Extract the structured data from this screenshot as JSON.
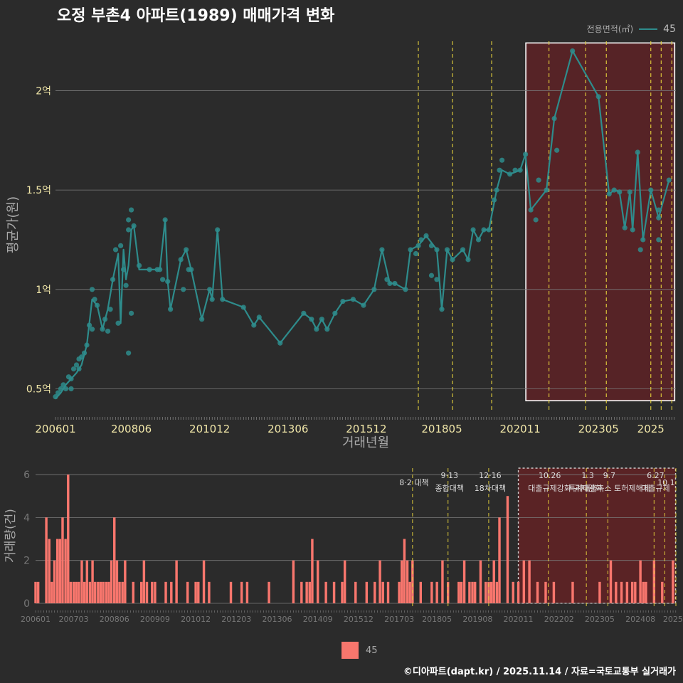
{
  "title": "오정 부촌4 아파트(1989) 매매가격 변화",
  "legend": {
    "label": "전용면적(㎡)",
    "series": "45",
    "bottom_series": "45"
  },
  "footer": "©디아파트(dapt.kr) / 2025.11.14 / 자료=국토교통부 실거래가",
  "colors": {
    "line": "#2e8c8c",
    "bar": "#f8766d",
    "policy": "#e6d23c",
    "highlight": "#7a1e22",
    "background": "#2b2b2b"
  },
  "chart_data": [
    {
      "type": "line",
      "title": "오정 부촌4 아파트(1989) 매매가격 변화",
      "xlabel": "거래년월",
      "ylabel": "평균가(원)",
      "x_tick_labels": [
        "200601",
        "200806",
        "201012",
        "201306",
        "201512",
        "201805",
        "202011",
        "202305",
        "2025"
      ],
      "x_tick_values": [
        2006.0,
        2008.42,
        2010.92,
        2013.42,
        2015.92,
        2018.33,
        2020.83,
        2023.33,
        2025.0
      ],
      "y_ticks": [
        0.5,
        1.0,
        1.5,
        2.0
      ],
      "y_tick_labels": [
        "0.5억",
        "1억",
        "1.5억",
        "2억"
      ],
      "ylim": [
        0.38,
        2.27
      ],
      "xlim": [
        2006.0,
        2025.8
      ],
      "units": "억원",
      "series": [
        {
          "name": "45",
          "line_x": [
            2006.0,
            2006.17,
            2006.33,
            2006.5,
            2006.67,
            2006.83,
            2007.0,
            2007.17,
            2007.33,
            2007.5,
            2007.67,
            2007.83,
            2008.0,
            2008.08,
            2008.17,
            2008.25,
            2008.33,
            2008.42,
            2008.5,
            2008.67,
            2009.0,
            2009.33,
            2009.5,
            2009.58,
            2009.67,
            2010.0,
            2010.17,
            2010.33,
            2010.67,
            2010.92,
            2011.0,
            2011.17,
            2011.33,
            2012.0,
            2012.33,
            2012.5,
            2013.17,
            2013.92,
            2014.17,
            2014.33,
            2014.5,
            2014.67,
            2014.92,
            2015.17,
            2015.5,
            2015.83,
            2016.17,
            2016.42,
            2016.67,
            2016.83,
            2017.17,
            2017.33,
            2017.58,
            2017.83,
            2018.17,
            2018.33,
            2018.5,
            2018.67,
            2019.0,
            2019.17,
            2019.33,
            2019.5,
            2019.67,
            2019.83,
            2020.08,
            2020.25,
            2020.5,
            2020.83,
            2021.0,
            2021.17,
            2021.67,
            2021.92,
            2022.5,
            2023.33,
            2023.67,
            2023.83,
            2024.0,
            2024.17,
            2024.33,
            2024.42,
            2024.58,
            2024.75,
            2025.0,
            2025.25,
            2025.58
          ],
          "line_y": [
            0.45,
            0.48,
            0.52,
            0.55,
            0.58,
            0.62,
            0.72,
            0.95,
            0.92,
            0.8,
            0.9,
            1.05,
            1.18,
            0.83,
            1.2,
            1.05,
            1.12,
            1.3,
            1.32,
            1.1,
            1.1,
            1.1,
            1.35,
            1.04,
            0.9,
            1.15,
            1.2,
            1.1,
            0.85,
            1.0,
            0.95,
            1.3,
            0.95,
            0.91,
            0.82,
            0.86,
            0.73,
            0.88,
            0.85,
            0.8,
            0.85,
            0.8,
            0.88,
            0.94,
            0.95,
            0.92,
            1.0,
            1.2,
            1.03,
            1.03,
            1.0,
            1.2,
            1.22,
            1.27,
            1.2,
            0.9,
            1.2,
            1.15,
            1.2,
            1.15,
            1.3,
            1.25,
            1.3,
            1.3,
            1.5,
            1.6,
            1.58,
            1.6,
            1.68,
            1.4,
            1.5,
            1.86,
            2.2,
            1.97,
            1.48,
            1.5,
            1.49,
            1.31,
            1.49,
            1.3,
            1.69,
            1.25,
            1.5,
            1.36,
            1.55
          ],
          "points_x": [
            2006.0,
            2006.08,
            2006.17,
            2006.25,
            2006.33,
            2006.42,
            2006.5,
            2006.58,
            2006.67,
            2006.75,
            2006.83,
            2006.92,
            2007.0,
            2007.08,
            2007.17,
            2007.25,
            2007.33,
            2007.5,
            2007.58,
            2007.67,
            2007.75,
            2007.83,
            2007.92,
            2008.0,
            2008.08,
            2008.17,
            2008.25,
            2008.33,
            2008.42,
            2008.5,
            2008.67,
            2009.0,
            2009.25,
            2009.33,
            2009.42,
            2009.5,
            2009.58,
            2009.67,
            2010.0,
            2010.08,
            2010.17,
            2010.25,
            2010.33,
            2010.67,
            2010.92,
            2011.0,
            2011.17,
            2011.33,
            2012.0,
            2012.33,
            2012.5,
            2013.17,
            2013.92,
            2014.17,
            2014.33,
            2014.5,
            2014.67,
            2014.92,
            2015.17,
            2015.5,
            2015.83,
            2016.17,
            2016.42,
            2016.58,
            2016.67,
            2016.83,
            2017.17,
            2017.33,
            2017.5,
            2017.58,
            2017.67,
            2017.83,
            2018.0,
            2018.17,
            2018.33,
            2018.5,
            2018.67,
            2019.0,
            2019.17,
            2019.33,
            2019.5,
            2019.67,
            2019.83,
            2020.0,
            2020.08,
            2020.17,
            2020.25,
            2020.5,
            2020.67,
            2020.83,
            2021.0,
            2021.17,
            2021.42,
            2021.67,
            2021.92,
            2022.5,
            2023.33,
            2023.67,
            2023.83,
            2024.0,
            2024.17,
            2024.33,
            2024.42,
            2024.58,
            2024.67,
            2024.75,
            2025.0,
            2025.25,
            2025.58
          ],
          "points_y": [
            0.46,
            0.48,
            0.5,
            0.52,
            0.5,
            0.56,
            0.55,
            0.6,
            0.62,
            0.65,
            0.66,
            0.68,
            0.72,
            0.82,
            1.0,
            0.95,
            0.92,
            0.8,
            0.85,
            0.79,
            0.9,
            1.05,
            1.2,
            0.83,
            1.22,
            1.1,
            1.02,
            1.3,
            1.4,
            1.32,
            1.12,
            1.1,
            1.1,
            1.1,
            1.05,
            1.35,
            1.04,
            0.9,
            1.15,
            1.0,
            1.2,
            1.1,
            1.1,
            0.85,
            1.0,
            0.95,
            1.3,
            0.95,
            0.91,
            0.82,
            0.86,
            0.73,
            0.88,
            0.85,
            0.8,
            0.85,
            0.8,
            0.88,
            0.94,
            0.95,
            0.92,
            1.0,
            1.2,
            1.05,
            1.03,
            1.03,
            1.0,
            1.2,
            1.18,
            1.22,
            1.25,
            1.27,
            1.22,
            1.2,
            0.9,
            1.2,
            1.15,
            1.2,
            1.15,
            1.3,
            1.25,
            1.3,
            1.3,
            1.45,
            1.5,
            1.6,
            1.65,
            1.58,
            1.6,
            1.6,
            1.68,
            1.4,
            1.55,
            1.5,
            1.86,
            2.2,
            1.97,
            1.48,
            1.5,
            1.49,
            1.31,
            1.49,
            1.3,
            1.69,
            1.2,
            1.25,
            1.5,
            1.36,
            1.55
          ],
          "extra_points": [
            [
              2006.5,
              0.5
            ],
            [
              2006.75,
              0.6
            ],
            [
              2007.17,
              0.8
            ],
            [
              2008.33,
              1.35
            ],
            [
              2008.33,
              0.68
            ],
            [
              2008.42,
              0.88
            ],
            [
              2018.0,
              1.07
            ],
            [
              2018.17,
              1.05
            ],
            [
              2021.33,
              1.35
            ],
            [
              2022.0,
              1.7
            ],
            [
              2025.25,
              1.25
            ],
            [
              2025.25,
              1.4
            ]
          ]
        }
      ],
      "highlight_region": {
        "x_start": 2020.83,
        "x_end": 2025.58
      },
      "policy_lines_x": [
        2017.58,
        2018.67,
        2019.92,
        2021.75,
        2022.92,
        2023.58,
        2025.0,
        2025.33,
        2025.67
      ]
    },
    {
      "type": "bar",
      "ylabel": "거래량(건)",
      "x_tick_labels": [
        "200601",
        "200703",
        "200806",
        "200909",
        "201012",
        "201203",
        "201306",
        "201409",
        "201512",
        "201703",
        "201805",
        "201908",
        "202011",
        "202202",
        "202305",
        "202408",
        "2025"
      ],
      "x_tick_values": [
        2006.0,
        2007.17,
        2008.42,
        2009.67,
        2010.92,
        2012.17,
        2013.42,
        2014.67,
        2015.92,
        2017.17,
        2018.33,
        2019.58,
        2020.83,
        2022.08,
        2023.33,
        2024.58,
        2025.58
      ],
      "y_ticks": [
        0,
        2,
        4,
        6
      ],
      "ylim": [
        0,
        6.3
      ],
      "series": [
        {
          "name": "45",
          "x": [
            2006.0,
            2006.08,
            2006.33,
            2006.42,
            2006.5,
            2006.58,
            2006.67,
            2006.75,
            2006.83,
            2006.92,
            2007.0,
            2007.08,
            2007.17,
            2007.25,
            2007.33,
            2007.42,
            2007.5,
            2007.58,
            2007.67,
            2007.75,
            2007.83,
            2007.92,
            2008.0,
            2008.08,
            2008.17,
            2008.25,
            2008.33,
            2008.42,
            2008.5,
            2008.58,
            2008.67,
            2008.75,
            2009.0,
            2009.25,
            2009.33,
            2009.42,
            2009.58,
            2009.67,
            2010.0,
            2010.17,
            2010.33,
            2010.67,
            2010.92,
            2011.0,
            2011.17,
            2011.33,
            2012.0,
            2012.33,
            2012.5,
            2013.17,
            2013.92,
            2014.17,
            2014.33,
            2014.42,
            2014.5,
            2014.67,
            2014.92,
            2015.17,
            2015.42,
            2015.5,
            2015.83,
            2016.17,
            2016.42,
            2016.58,
            2016.67,
            2016.83,
            2017.17,
            2017.25,
            2017.33,
            2017.42,
            2017.5,
            2017.58,
            2017.83,
            2018.17,
            2018.33,
            2018.5,
            2018.67,
            2019.0,
            2019.08,
            2019.17,
            2019.33,
            2019.42,
            2019.5,
            2019.67,
            2019.83,
            2019.92,
            2020.0,
            2020.08,
            2020.17,
            2020.25,
            2020.5,
            2020.67,
            2020.83,
            2021.0,
            2021.17,
            2021.42,
            2021.67,
            2021.92,
            2022.5,
            2023.33,
            2023.67,
            2023.83,
            2024.0,
            2024.17,
            2024.33,
            2024.42,
            2024.58,
            2024.67,
            2024.75,
            2025.0,
            2025.25,
            2025.58
          ],
          "values": [
            1,
            1,
            4,
            3,
            1,
            2,
            3,
            3,
            4,
            3,
            6,
            1,
            1,
            1,
            1,
            2,
            1,
            2,
            1,
            2,
            1,
            1,
            1,
            1,
            1,
            1,
            2,
            4,
            2,
            1,
            1,
            2,
            1,
            1,
            2,
            1,
            1,
            1,
            1,
            1,
            2,
            1,
            1,
            1,
            2,
            1,
            1,
            1,
            1,
            1,
            2,
            1,
            1,
            1,
            3,
            2,
            1,
            1,
            1,
            2,
            1,
            1,
            1,
            2,
            1,
            1,
            1,
            2,
            3,
            2,
            1,
            2,
            1,
            1,
            1,
            2,
            1,
            1,
            1,
            2,
            1,
            1,
            1,
            2,
            1,
            1,
            1,
            2,
            1,
            4,
            5,
            1,
            1,
            2,
            2,
            1,
            1,
            1,
            1,
            1,
            2,
            1,
            1,
            1,
            1,
            1,
            2,
            1,
            1,
            2,
            1,
            2
          ]
        }
      ],
      "highlight_region": {
        "x_start": 2020.83,
        "x_end": 2025.58
      },
      "policy_lines": [
        {
          "x": 2017.58,
          "date": "8·2 대책",
          "label": ""
        },
        {
          "x": 2018.67,
          "date": "9·13",
          "label": "종합대책"
        },
        {
          "x": 2019.92,
          "date": "12·16",
          "label": "18차대책"
        },
        {
          "x": 2021.75,
          "date": "10.26",
          "label": "대출규제강화"
        },
        {
          "x": 2022.92,
          "date": "1.3",
          "label": "규제완화"
        },
        {
          "x": 2023.58,
          "date": "9.7",
          "label": "특례대출축소 토허제해제"
        },
        {
          "x": 2025.0,
          "date": "6.27",
          "label": "대출규제"
        },
        {
          "x": 2025.33,
          "date": "10.1",
          "label": ""
        },
        {
          "x": 2025.67,
          "date": "",
          "label": ""
        }
      ]
    }
  ]
}
